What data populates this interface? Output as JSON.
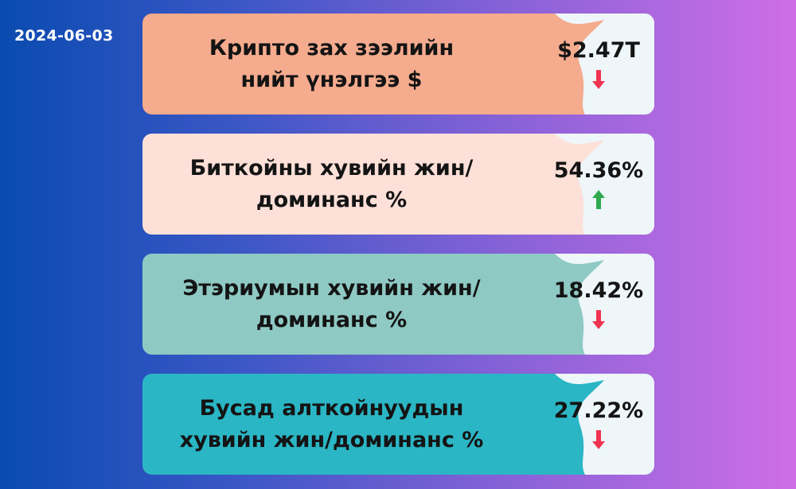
{
  "date": "2024-06-03",
  "colors": {
    "up": "#2fa84f",
    "down": "#f0344f",
    "value_panel": "#eef6fa"
  },
  "cards": [
    {
      "lines": [
        "Крипто зах зээлийн",
        "нийт үнэлгээ $"
      ],
      "value": "$2.47T",
      "trend": "down",
      "trend_icon": "arrow-down-icon",
      "color": "#f5ab8e"
    },
    {
      "lines": [
        "Биткойны хувийн жин/",
        "доминанс %"
      ],
      "value": "54.36%",
      "trend": "up",
      "trend_icon": "arrow-up-icon",
      "color": "#fde0d8"
    },
    {
      "lines": [
        "Этэриумын хувийн жин/",
        "доминанс %"
      ],
      "value": "18.42%",
      "trend": "down",
      "trend_icon": "arrow-down-icon",
      "color": "#8fc9c4"
    },
    {
      "lines": [
        "Бусад алткойнуудын",
        "хувийн жин/доминанс %"
      ],
      "value": "27.22%",
      "trend": "down",
      "trend_icon": "arrow-down-icon",
      "color": "#2bb6c5"
    }
  ]
}
